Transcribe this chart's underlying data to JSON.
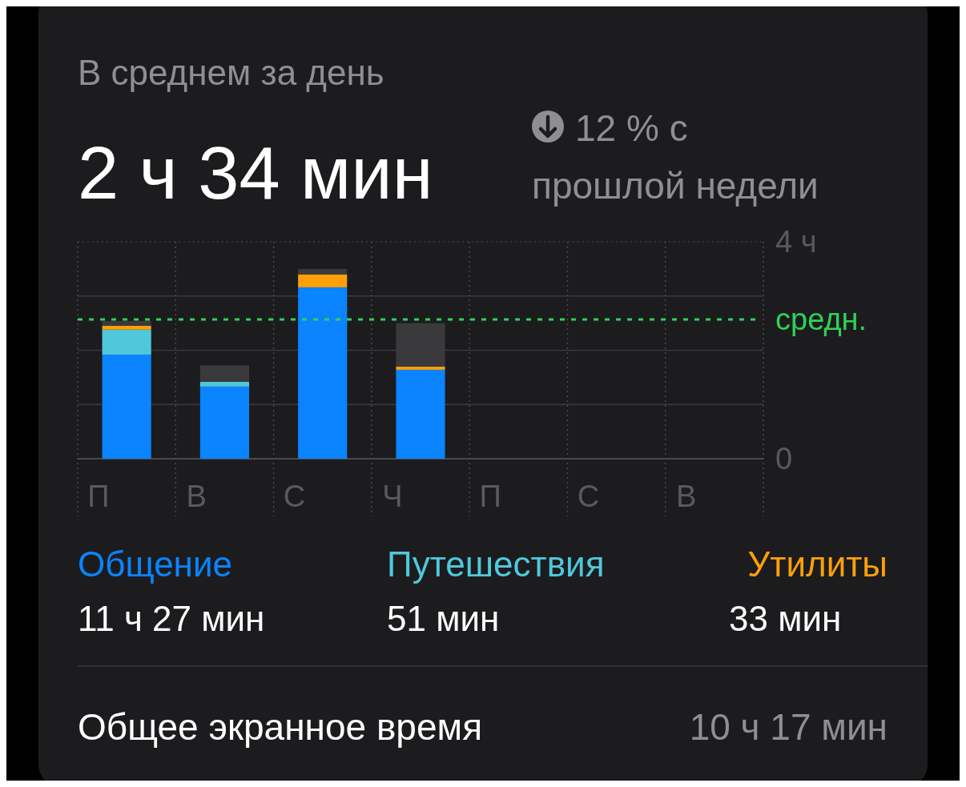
{
  "chart_data": {
    "type": "bar",
    "title": "В среднем за день",
    "subtitle": "2 ч 34 мин",
    "stacked": true,
    "categories": [
      "П",
      "В",
      "С",
      "Ч",
      "П",
      "С",
      "В"
    ],
    "series": [
      {
        "name": "Общение",
        "color": "#0a84ff",
        "values": [
          1.92,
          1.33,
          3.16,
          1.64,
          null,
          null,
          null
        ]
      },
      {
        "name": "Путешествия",
        "color": "#4fc8dc",
        "values": [
          0.46,
          0.09,
          0,
          0,
          null,
          null,
          null
        ]
      },
      {
        "name": "Утилиты",
        "color": "#ff9f0a",
        "values": [
          0.07,
          0,
          0.24,
          0.06,
          null,
          null,
          null
        ]
      },
      {
        "color": "#3a3a3c",
        "values": [
          0.09,
          0.3,
          0.1,
          0.8,
          null,
          null,
          null
        ]
      }
    ],
    "ylim": [
      0,
      4
    ],
    "yticks": [
      0,
      {
        "value": 1,
        "label": null
      },
      {
        "value": 2,
        "label": null
      },
      {
        "value": 3,
        "label": null
      },
      {
        "value": 4,
        "label": "4 ч"
      }
    ],
    "grid": true,
    "legend": "bottom",
    "ref_lines": [
      {
        "axis": "y",
        "value": 2.57,
        "label": "средн.",
        "color": "#30d158",
        "line_style": "dashed"
      }
    ],
    "annotations": [
      "12 % с прошлой недели",
      "11 ч 27 мин",
      "51 мин",
      "33 мин",
      "Общее экранное время",
      "10 ч 17 мин"
    ]
  }
}
